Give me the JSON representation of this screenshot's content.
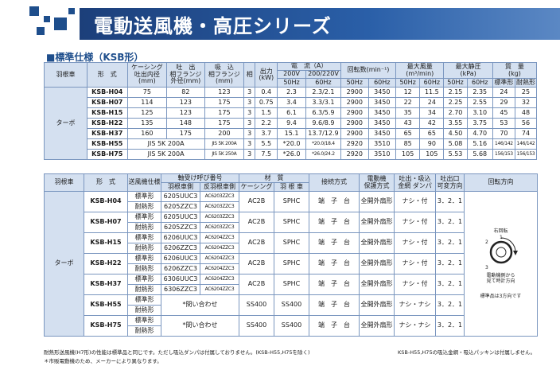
{
  "header": {
    "title": "電動送風機・高圧シリーズ"
  },
  "section_title": "■標準仕様（KSB形）",
  "spec": {
    "h_blade": "羽根車",
    "h_model": "形　式",
    "h_casing": "ケーシング\n吐出内径\n(mm)",
    "h_flange": "吐　出\n相フランジ\n外径(mm)",
    "h_suction": "吸　込\n相フランジ\n(mm)",
    "h_phase": "相",
    "h_output": "出力\n(kW)",
    "h_current": "電　流（A）",
    "h_cur_v1": "200V",
    "h_cur_v2": "200/220V",
    "h_hz50": "50Hz",
    "h_hz60": "60Hz",
    "h_rpm": "回転数(min⁻¹)",
    "h_airflow": "最大風量\n(m³/min)",
    "h_pressure": "最大静圧\n(kPa)",
    "h_mass": "質　量\n(kg)",
    "h_std": "標準形",
    "h_heat": "耐熱形",
    "blade_type": "ターボ",
    "rows": [
      {
        "model": "KSB-H04",
        "casing": "75",
        "flange": "82",
        "suction": "123",
        "phase": "3",
        "kw": "0.4",
        "c50": "2.3",
        "c60": "2.3/2.1",
        "r50": "2900",
        "r60": "3450",
        "q50": "12",
        "q60": "11.5",
        "p50": "2.15",
        "p60": "2.35",
        "m1": "24",
        "m2": "25"
      },
      {
        "model": "KSB-H07",
        "casing": "114",
        "flange": "123",
        "suction": "175",
        "phase": "3",
        "kw": "0.75",
        "c50": "3.4",
        "c60": "3.3/3.1",
        "r50": "2900",
        "r60": "3450",
        "q50": "22",
        "q60": "24",
        "p50": "2.25",
        "p60": "2.55",
        "m1": "29",
        "m2": "32"
      },
      {
        "model": "KSB-H15",
        "casing": "125",
        "flange": "123",
        "suction": "175",
        "phase": "3",
        "kw": "1.5",
        "c50": "6.1",
        "c60": "6.3/5.9",
        "r50": "2900",
        "r60": "3450",
        "q50": "35",
        "q60": "34",
        "p50": "2.70",
        "p60": "3.10",
        "m1": "45",
        "m2": "48"
      },
      {
        "model": "KSB-H22",
        "casing": "135",
        "flange": "148",
        "suction": "175",
        "phase": "3",
        "kw": "2.2",
        "c50": "9.4",
        "c60": "9.6/8.9",
        "r50": "2900",
        "r60": "3450",
        "q50": "43",
        "q60": "42",
        "p50": "3.55",
        "p60": "3.75",
        "m1": "53",
        "m2": "56"
      },
      {
        "model": "KSB-H37",
        "casing": "160",
        "flange": "175",
        "suction": "200",
        "phase": "3",
        "kw": "3.7",
        "c50": "15.1",
        "c60": "13.7/12.9",
        "r50": "2900",
        "r60": "3450",
        "q50": "65",
        "q60": "65",
        "p50": "4.50",
        "p60": "4.70",
        "m1": "70",
        "m2": "74"
      },
      {
        "model": "KSB-H55",
        "casing_flange": "JIS 5K 200A",
        "suction": "JIS 5K 200A",
        "phase": "3",
        "kw": "5.5",
        "c50": "*20.0",
        "c60": "*20.0/18.4",
        "r50": "2920",
        "r60": "3510",
        "q50": "85",
        "q60": "90",
        "p50": "5.08",
        "p60": "5.16",
        "m1": "146/142",
        "m2": "146/142"
      },
      {
        "model": "KSB-H75",
        "casing_flange": "JIS 5K 200A",
        "suction": "JIS 5K 250A",
        "phase": "3",
        "kw": "7.5",
        "c50": "*26.0",
        "c60": "*26.0/24.2",
        "r50": "2920",
        "r60": "3510",
        "q50": "105",
        "q60": "105",
        "p50": "5.53",
        "p60": "5.68",
        "m1": "156/153",
        "m2": "156/153"
      }
    ]
  },
  "detail": {
    "h_blade": "羽根車",
    "h_model": "形　式",
    "h_spec": "送風機仕様",
    "h_bearing": "軸受け呼び番号",
    "h_bear_blade": "羽根車側",
    "h_bear_rev": "反羽根車側",
    "h_material": "材　質",
    "h_casing": "ケーシング",
    "h_mat_blade": "羽 根 車",
    "h_conn": "接続方式",
    "h_motor": "電動機\n保護方式",
    "h_outlet": "吐出・吸込\n金網 ダンパ",
    "h_port": "吐出口\n可変方向",
    "h_rot": "回転方向",
    "blade_type": "ターボ",
    "std": "標準形",
    "heat": "耐熱形",
    "conn": "端　子　台",
    "motor": "全開外扇形",
    "rows": [
      {
        "model": "KSB-H04",
        "b1s": "6205UUC3",
        "b2s": "AC6203ZZC3",
        "b1h": "6205ZZC3",
        "b2h": "AC6203ZZC3",
        "casing": "AC2B",
        "blade": "SPHC",
        "outlet": "ナシ・付",
        "port": "3．2．1"
      },
      {
        "model": "KSB-H07",
        "b1s": "6205UUC3",
        "b2s": "AC6203ZZC3",
        "b1h": "6205ZZC3",
        "b2h": "AC6203ZZC3",
        "casing": "AC2B",
        "blade": "SPHC",
        "outlet": "ナシ・付",
        "port": "3．2．1"
      },
      {
        "model": "KSB-H15",
        "b1s": "6206UUC3",
        "b2s": "AC6204ZZC3",
        "b1h": "6206ZZC3",
        "b2h": "AC6204ZZC3",
        "casing": "AC2B",
        "blade": "SPHC",
        "outlet": "ナシ・付",
        "port": "3．2．1"
      },
      {
        "model": "KSB-H22",
        "b1s": "6206UUC3",
        "b2s": "AC6204ZZC3",
        "b1h": "6206ZZC3",
        "b2h": "AC6204ZZC3",
        "casing": "AC2B",
        "blade": "SPHC",
        "outlet": "ナシ・付",
        "port": "3．2．1"
      },
      {
        "model": "KSB-H37",
        "b1s": "6306UUC3",
        "b2s": "AC6204ZZC3",
        "b1h": "6306ZZC3",
        "b2h": "AC6204ZZC3",
        "casing": "AC2B",
        "blade": "SPHC",
        "outlet": "ナシ・付",
        "port": "3．2．1"
      },
      {
        "model": "KSB-H55",
        "inquiry": "*問い合わせ",
        "casing": "SS400",
        "blade": "SS400",
        "outlet": "ナシ・ナシ",
        "port": "3．2．1"
      },
      {
        "model": "KSB-H75",
        "inquiry": "*問い合わせ",
        "casing": "SS400",
        "blade": "SS400",
        "outlet": "ナシ・ナシ",
        "port": "3．2．1"
      }
    ],
    "rotation": {
      "label": "右回転",
      "note1": "電動機側から",
      "note2": "見て時計方向",
      "std_note": "標準品は3方向です",
      "n1": "1",
      "n2": "2",
      "n3": "3"
    }
  },
  "footer": {
    "note1": "耐熱形送風機(H7形)の性能は標準品と同じです。ただし吸込ダンパは付属しておりません。(KSB-H55,H75を除く)",
    "note2": "＊市販電動機のため、メーカーにより異なります。",
    "note3": "KSB-H55,H75の吸込金網・吸込パッキンは付属しません。"
  }
}
